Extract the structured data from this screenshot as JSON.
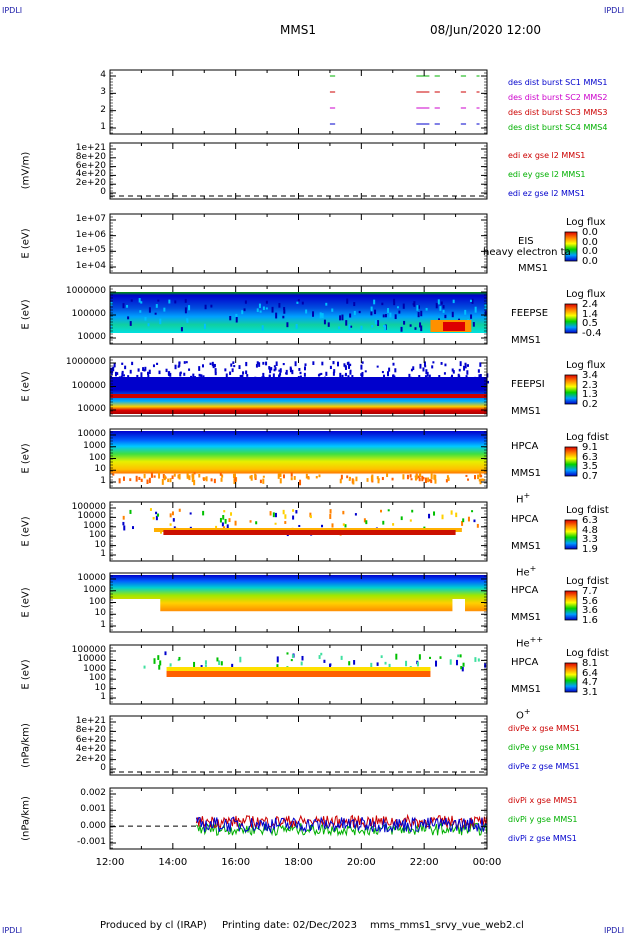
{
  "corners": {
    "tl": "IPDLI",
    "tr": "IPDLI",
    "bl": "IPDLI",
    "br": "IPDLI"
  },
  "header": {
    "spacecraft": "MMS1",
    "datetime": "08/Jun/2020 12:00"
  },
  "time_axis": {
    "ticks": [
      "12:00",
      "14:00",
      "16:00",
      "18:00",
      "20:00",
      "22:00",
      "00:00"
    ]
  },
  "colors": {
    "blue": "#0000cc",
    "magenta": "#cc00cc",
    "red": "#cc0000",
    "green": "#00b000"
  },
  "panels": [
    {
      "id": "burst",
      "ylabel": "",
      "ticks": [
        "4",
        "3",
        "2",
        "1"
      ],
      "legend": [
        {
          "text": "des dist burst SC1 MMS1",
          "color": "#0000cc"
        },
        {
          "text": "des dist burst SC2 MMS2",
          "color": "#cc00cc"
        },
        {
          "text": "des dist burst SC3 MMS3",
          "color": "#cc0000"
        },
        {
          "text": "des dist burst SC4 MMS4",
          "color": "#00b000"
        }
      ]
    },
    {
      "id": "edi",
      "ylabel": "(mV/m)",
      "ticks": [
        "1e+21",
        "8e+20",
        "6e+20",
        "4e+20",
        "2e+20",
        "0"
      ],
      "legend": [
        {
          "text": "edi ex gse l2 MMS1",
          "color": "#cc0000"
        },
        {
          "text": "edi ey gse l2 MMS1",
          "color": "#00b000"
        },
        {
          "text": "edi ez gse l2 MMS1",
          "color": "#0000cc"
        }
      ]
    },
    {
      "id": "eis",
      "ylabel": "E (eV)",
      "ticks": [
        "1e+07",
        "1e+06",
        "1e+05",
        "1e+04"
      ],
      "inst": [
        "EIS",
        "MMS1"
      ],
      "overlay": "heavy electron ta",
      "cb_title": "Log flux",
      "cb_vals": [
        "0.0",
        "0.0",
        "0.0",
        "0.0"
      ]
    },
    {
      "id": "feepse",
      "ylabel": "E (eV)",
      "ticks": [
        "1000000",
        "100000",
        "10000"
      ],
      "inst": [
        "FEEPSE",
        "MMS1"
      ],
      "cb_title": "Log flux",
      "cb_vals": [
        "2.4",
        "1.4",
        "0.5",
        "-0.4"
      ]
    },
    {
      "id": "feepsi",
      "ylabel": "E (eV)",
      "ticks": [
        "1000000",
        "100000",
        "10000"
      ],
      "inst": [
        "FEEPSI",
        "MMS1"
      ],
      "cb_title": "Log flux",
      "cb_vals": [
        "3.4",
        "2.3",
        "1.3",
        "0.2"
      ]
    },
    {
      "id": "hpca_h",
      "ylabel": "E (eV)",
      "ticks": [
        "10000",
        "1000",
        "100",
        "10",
        "1"
      ],
      "inst": [
        "HPCA",
        "MMS1"
      ],
      "species": "H",
      "charge": "+",
      "cb_title": "Log fdist",
      "cb_vals": [
        "9.1",
        "6.3",
        "3.5",
        "0.7"
      ]
    },
    {
      "id": "hpca_he",
      "ylabel": "E (eV)",
      "ticks": [
        "100000",
        "10000",
        "1000",
        "100",
        "10",
        "1"
      ],
      "inst": [
        "HPCA",
        "MMS1"
      ],
      "species": "He",
      "charge": "+",
      "cb_title": "Log fdist",
      "cb_vals": [
        "6.3",
        "4.8",
        "3.3",
        "1.9"
      ]
    },
    {
      "id": "hpca_hepp",
      "ylabel": "E (eV)",
      "ticks": [
        "10000",
        "1000",
        "100",
        "10",
        "1"
      ],
      "inst": [
        "HPCA",
        "MMS1"
      ],
      "species": "He",
      "charge": "++",
      "cb_title": "Log fdist",
      "cb_vals": [
        "7.7",
        "5.6",
        "3.6",
        "1.6"
      ]
    },
    {
      "id": "hpca_o",
      "ylabel": "E (eV)",
      "ticks": [
        "100000",
        "10000",
        "1000",
        "100",
        "10",
        "1"
      ],
      "inst": [
        "HPCA",
        "MMS1"
      ],
      "species": "O",
      "charge": "+",
      "cb_title": "Log fdist",
      "cb_vals": [
        "8.1",
        "6.4",
        "4.7",
        "3.1"
      ]
    },
    {
      "id": "divpe",
      "ylabel": "(nPa/km)",
      "ticks": [
        "1e+21",
        "8e+20",
        "6e+20",
        "4e+20",
        "2e+20",
        "0"
      ],
      "legend": [
        {
          "text": "divPe x gse MMS1",
          "color": "#cc0000"
        },
        {
          "text": "divPe y gse MMS1",
          "color": "#00b000"
        },
        {
          "text": "divPe z gse MMS1",
          "color": "#0000cc"
        }
      ]
    },
    {
      "id": "divpi",
      "ylabel": "(nPa/km)",
      "ticks": [
        "0.002",
        "0.001",
        "0.000",
        "-0.001"
      ],
      "legend": [
        {
          "text": "divPi x gse MMS1",
          "color": "#cc0000"
        },
        {
          "text": "divPi y gse MMS1",
          "color": "#00b000"
        },
        {
          "text": "divPi z gse MMS1",
          "color": "#0000cc"
        }
      ]
    }
  ],
  "chart_data": {
    "type": "line",
    "x_range": [
      "12:00",
      "00:00"
    ],
    "burst_segments": {
      "note_series": [
        "MMS1",
        "MMS2",
        "MMS3",
        "MMS4"
      ],
      "intervals": [
        [
          "19:00",
          "19:10"
        ],
        [
          "21:45",
          "22:10"
        ],
        [
          "22:20",
          "22:30"
        ],
        [
          "23:10",
          "23:20"
        ],
        [
          "23:40",
          "23:45"
        ]
      ]
    },
    "divpi": {
      "ylim": [
        -0.0015,
        0.0025
      ],
      "start": "14:45",
      "series": [
        {
          "name": "divPi x gse MMS1",
          "mean": 0.0003
        },
        {
          "name": "divPi y gse MMS1",
          "mean": -0.0002
        },
        {
          "name": "divPi z gse MMS1",
          "mean": 0.0001
        }
      ]
    }
  },
  "footer": {
    "produced": "Produced by cl (IRAP)",
    "printed": "Printing date: 02/Dec/2023",
    "file": "mms_mms1_srvy_vue_web2.cl"
  }
}
